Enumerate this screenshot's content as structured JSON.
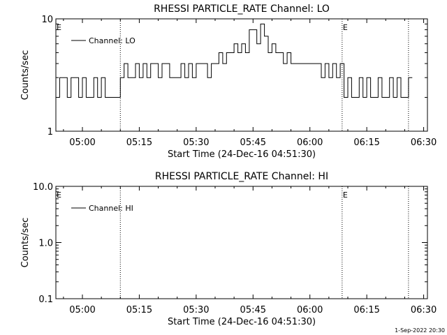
{
  "chart_data": [
    {
      "type": "line",
      "title": "RHESSI PARTICLE_RATE Channel: LO",
      "xlabel": "Start Time (24-Dec-16 04:51:30)",
      "ylabel": "Counts/sec",
      "yscale": "log",
      "ylim": [
        1,
        10
      ],
      "ytick_values": [
        1,
        10
      ],
      "ytick_labels": [
        "1",
        "10"
      ],
      "xlim": [
        "04:53:00",
        "06:31:00"
      ],
      "xtick_labels": [
        "05:00",
        "05:15",
        "05:30",
        "05:45",
        "06:00",
        "06:15",
        "06:30"
      ],
      "grid": false,
      "legend": {
        "position": "top-left",
        "entries": [
          "Channel: LO"
        ]
      },
      "annotations": [
        "E",
        "E"
      ],
      "markers": [
        "05:10:00",
        "06:08:30",
        "06:26:00"
      ],
      "series": [
        {
          "name": "Channel: LO",
          "x": [
            "04:53:00",
            "04:54:00",
            "04:55:00",
            "04:56:00",
            "04:57:00",
            "04:58:00",
            "04:59:00",
            "05:00:00",
            "05:01:00",
            "05:02:00",
            "05:03:00",
            "05:04:00",
            "05:05:00",
            "05:06:00",
            "05:07:00",
            "05:08:00",
            "05:09:00",
            "05:10:00",
            "05:11:00",
            "05:12:00",
            "05:13:00",
            "05:14:00",
            "05:15:00",
            "05:16:00",
            "05:17:00",
            "05:18:00",
            "05:19:00",
            "05:20:00",
            "05:21:00",
            "05:22:00",
            "05:23:00",
            "05:24:00",
            "05:25:00",
            "05:26:00",
            "05:27:00",
            "05:28:00",
            "05:29:00",
            "05:30:00",
            "05:31:00",
            "05:32:00",
            "05:33:00",
            "05:34:00",
            "05:35:00",
            "05:36:00",
            "05:37:00",
            "05:38:00",
            "05:39:00",
            "05:40:00",
            "05:41:00",
            "05:42:00",
            "05:43:00",
            "05:44:00",
            "05:45:00",
            "05:46:00",
            "05:47:00",
            "05:48:00",
            "05:49:00",
            "05:50:00",
            "05:51:00",
            "05:52:00",
            "05:53:00",
            "05:54:00",
            "05:55:00",
            "05:56:00",
            "05:57:00",
            "05:58:00",
            "05:59:00",
            "06:00:00",
            "06:01:00",
            "06:02:00",
            "06:03:00",
            "06:04:00",
            "06:05:00",
            "06:06:00",
            "06:07:00",
            "06:08:00",
            "06:09:00",
            "06:10:00",
            "06:11:00",
            "06:12:00",
            "06:13:00",
            "06:14:00",
            "06:15:00",
            "06:16:00",
            "06:17:00",
            "06:18:00",
            "06:19:00",
            "06:20:00",
            "06:21:00",
            "06:22:00",
            "06:23:00",
            "06:24:00",
            "06:25:00",
            "06:26:00"
          ],
          "values": [
            2,
            3,
            3,
            2,
            3,
            3,
            2,
            3,
            2,
            2,
            3,
            2,
            3,
            2,
            2,
            2,
            2,
            3,
            4,
            3,
            3,
            4,
            3,
            4,
            3,
            4,
            4,
            3,
            4,
            4,
            3,
            3,
            3,
            4,
            3,
            4,
            3,
            4,
            4,
            4,
            3,
            4,
            4,
            5,
            4,
            5,
            5,
            6,
            5,
            6,
            5,
            8,
            8,
            6,
            9,
            7,
            5,
            6,
            5,
            5,
            4,
            5,
            4,
            4,
            4,
            4,
            4,
            4,
            4,
            4,
            3,
            4,
            3,
            4,
            3,
            4,
            2,
            3,
            2,
            2,
            3,
            2,
            3,
            2,
            2,
            3,
            2,
            2,
            3,
            2,
            3,
            2,
            2,
            3
          ]
        }
      ]
    },
    {
      "type": "line",
      "title": "RHESSI PARTICLE_RATE Channel: HI",
      "xlabel": "Start Time (24-Dec-16 04:51:30)",
      "ylabel": "Counts/sec",
      "yscale": "log",
      "ylim": [
        0.1,
        10
      ],
      "ytick_values": [
        0.1,
        1,
        10
      ],
      "ytick_labels": [
        "0.1",
        "1.0",
        "10.0"
      ],
      "xlim": [
        "04:53:00",
        "06:31:00"
      ],
      "xtick_labels": [
        "05:00",
        "05:15",
        "05:30",
        "05:45",
        "06:00",
        "06:15",
        "06:30"
      ],
      "grid": false,
      "legend": {
        "position": "top-left",
        "entries": [
          "Channel: HI"
        ]
      },
      "annotations": [
        "E",
        "E"
      ],
      "markers": [
        "05:10:00",
        "06:08:30",
        "06:26:00"
      ],
      "series": [
        {
          "name": "Channel: HI",
          "x": [],
          "values": []
        }
      ]
    }
  ],
  "footer": {
    "date": "1-Sep-2022 20:30"
  }
}
